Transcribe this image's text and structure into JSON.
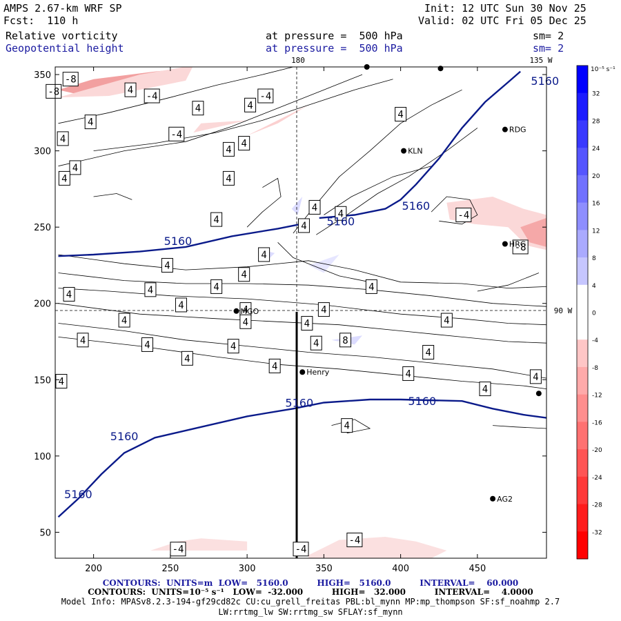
{
  "header": {
    "model": "AMPS 2.67-km WRF SP",
    "forecast": "Fcst:  110 h",
    "init": "Init: 12 UTC Sun 30 Nov 25",
    "valid": "Valid: 02 UTC Fri 05 Dec 25",
    "field1": "Relative vorticity",
    "field1_level": "at pressure =  500 hPa",
    "field1_sm": "sm= 2",
    "field2": "Geopotential height",
    "field2_level": "at pressure =  500 hPa",
    "field2_sm": "sm= 2"
  },
  "map_labels": {
    "lon_180": "180",
    "lon_135w": "135 W",
    "lon_90w": "90 W"
  },
  "stations": [
    {
      "name": "RDG",
      "x": 468,
      "y": 314
    },
    {
      "name": "KLN",
      "x": 402,
      "y": 300
    },
    {
      "name": "HRG",
      "x": 468,
      "y": 239
    },
    {
      "name": "MGO",
      "x": 293,
      "y": 195
    },
    {
      "name": "Henry",
      "x": 336,
      "y": 155
    },
    {
      "name": "AG2",
      "x": 460,
      "y": 72
    },
    {
      "name": "",
      "x": 490,
      "y": 141
    },
    {
      "name": "",
      "x": 426,
      "y": 354
    },
    {
      "name": "",
      "x": 378,
      "y": 355
    }
  ],
  "colorbar": {
    "unit": "10⁻⁵ s⁻¹",
    "levels": [
      32,
      28,
      24,
      20,
      16,
      12,
      8,
      4,
      0,
      -4,
      -8,
      -12,
      -16,
      -20,
      -24,
      -28,
      -32
    ]
  },
  "chart_data": {
    "type": "contour",
    "xlim": [
      175,
      495
    ],
    "ylim": [
      33,
      355
    ],
    "x_ticks": [
      200,
      250,
      300,
      350,
      400,
      450
    ],
    "y_ticks": [
      50,
      100,
      150,
      200,
      250,
      300,
      350
    ],
    "height_contour_level": "5160",
    "height_contour_labels": [
      {
        "text": "5160",
        "x": 494,
        "y": 346
      },
      {
        "text": "5160",
        "x": 410,
        "y": 264
      },
      {
        "text": "5160",
        "x": 361,
        "y": 254
      },
      {
        "text": "5160",
        "x": 255,
        "y": 241
      },
      {
        "text": "5160",
        "x": 334,
        "y": 135
      },
      {
        "text": "5160",
        "x": 414,
        "y": 136
      },
      {
        "text": "5160",
        "x": 220,
        "y": 113
      },
      {
        "text": "5160",
        "x": 190,
        "y": 75
      }
    ],
    "vorticity_labels": [
      {
        "text": "-8",
        "x": 185,
        "y": 347
      },
      {
        "text": "-8",
        "x": 174,
        "y": 339
      },
      {
        "text": "4",
        "x": 224,
        "y": 340
      },
      {
        "text": "-4",
        "x": 238,
        "y": 336
      },
      {
        "text": "4",
        "x": 302,
        "y": 330
      },
      {
        "text": "-4",
        "x": 312,
        "y": 336
      },
      {
        "text": "4",
        "x": 268,
        "y": 328
      },
      {
        "text": "4",
        "x": 198,
        "y": 319
      },
      {
        "text": "-4",
        "x": 254,
        "y": 311
      },
      {
        "text": "4",
        "x": 180,
        "y": 308
      },
      {
        "text": "4",
        "x": 288,
        "y": 301
      },
      {
        "text": "4",
        "x": 298,
        "y": 305
      },
      {
        "text": "4",
        "x": 188,
        "y": 289
      },
      {
        "text": "4",
        "x": 181,
        "y": 282
      },
      {
        "text": "4",
        "x": 288,
        "y": 282
      },
      {
        "text": "4",
        "x": 400,
        "y": 324
      },
      {
        "text": "4",
        "x": 344,
        "y": 263
      },
      {
        "text": "4",
        "x": 361,
        "y": 259
      },
      {
        "text": "-4",
        "x": 441,
        "y": 258
      },
      {
        "text": "4",
        "x": 280,
        "y": 255
      },
      {
        "text": "4",
        "x": 337,
        "y": 251
      },
      {
        "text": "-8",
        "x": 478,
        "y": 237
      },
      {
        "text": "4",
        "x": 248,
        "y": 225
      },
      {
        "text": "4",
        "x": 311,
        "y": 232
      },
      {
        "text": "4",
        "x": 298,
        "y": 219
      },
      {
        "text": "4",
        "x": 237,
        "y": 209
      },
      {
        "text": "4",
        "x": 280,
        "y": 211
      },
      {
        "text": "4",
        "x": 381,
        "y": 211
      },
      {
        "text": "4",
        "x": 184,
        "y": 206
      },
      {
        "text": "4",
        "x": 257,
        "y": 199
      },
      {
        "text": "4",
        "x": 299,
        "y": 196
      },
      {
        "text": "4",
        "x": 350,
        "y": 196
      },
      {
        "text": "4",
        "x": 220,
        "y": 189
      },
      {
        "text": "4",
        "x": 299,
        "y": 188
      },
      {
        "text": "4",
        "x": 430,
        "y": 189
      },
      {
        "text": "4",
        "x": 339,
        "y": 187
      },
      {
        "text": "4",
        "x": 193,
        "y": 176
      },
      {
        "text": "8",
        "x": 364,
        "y": 176
      },
      {
        "text": "4",
        "x": 345,
        "y": 174
      },
      {
        "text": "4",
        "x": 235,
        "y": 173
      },
      {
        "text": "4",
        "x": 291,
        "y": 172
      },
      {
        "text": "4",
        "x": 418,
        "y": 168
      },
      {
        "text": "4",
        "x": 261,
        "y": 164
      },
      {
        "text": "4",
        "x": 318,
        "y": 159
      },
      {
        "text": "4",
        "x": 405,
        "y": 154
      },
      {
        "text": "4",
        "x": 488,
        "y": 152
      },
      {
        "text": "4",
        "x": 179,
        "y": 149
      },
      {
        "text": "4",
        "x": 455,
        "y": 144
      },
      {
        "text": "4",
        "x": 365,
        "y": 120
      },
      {
        "text": "-4",
        "x": 255,
        "y": 39
      },
      {
        "text": "-4",
        "x": 370,
        "y": 45
      },
      {
        "text": "-4",
        "x": 335,
        "y": 39
      }
    ]
  },
  "footer": {
    "line1": "CONTOURS:  UNITS=m  LOW=   5160.0          HIGH=   5160.0          INTERVAL=    60.000",
    "line2": "CONTOURS:  UNITS=10⁻⁵ s⁻¹   LOW=  -32.000          HIGH=   32.000          INTERVAL=    4.0000",
    "line3": "Model Info: MPASv8.2.3-194-gf29cd82c CU:cu_grell_freitas PBL:bl_mynn MP:mp_thompson SF:sf_noahmp 2.7",
    "line4": "LW:rrtmg_lw SW:rrtmg_sw SFLAY:sf_mynn"
  },
  "colors": {
    "height_line": "#0a1a8a",
    "blue_text": "#1a1aa0",
    "pos_vort": "#c8c8ff",
    "neg_vort": "#ffb8b8"
  }
}
